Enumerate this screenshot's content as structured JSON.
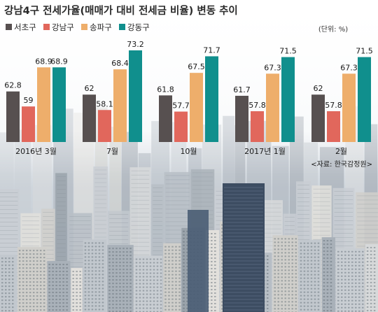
{
  "title": "강남4구 전세가율(매매가 대비 전세금 비율) 변동 추이",
  "unit": "(단위: %)",
  "source": "<자료: 한국감정원>",
  "colors": {
    "서초구": "#575050",
    "강남구": "#e1675c",
    "송파구": "#eeae6b",
    "강동구": "#108f8d"
  },
  "chart_data": {
    "type": "bar",
    "title": "강남4구 전세가율(매매가 대비 전세금 비율) 변동 추이",
    "categories": [
      "2016년 3월",
      "7월",
      "10월",
      "2017년 1월",
      "2월"
    ],
    "series": [
      {
        "name": "서초구",
        "values": [
          62.8,
          62,
          61.8,
          61.7,
          62
        ]
      },
      {
        "name": "강남구",
        "values": [
          59,
          58.1,
          57.7,
          57.8,
          57.8
        ]
      },
      {
        "name": "송파구",
        "values": [
          68.9,
          68.4,
          67.5,
          67.3,
          67.3
        ]
      },
      {
        "name": "강동구",
        "values": [
          68.9,
          73.2,
          71.7,
          71.5,
          71.5
        ]
      }
    ],
    "value_labels": [
      [
        "62.8",
        "59",
        "68.9",
        "68.9"
      ],
      [
        "62",
        "58.1",
        "68.4",
        "73.2"
      ],
      [
        "61.8",
        "57.7",
        "67.5",
        "71.7"
      ],
      [
        "61.7",
        "57.8",
        "67.3",
        "71.5"
      ],
      [
        "62",
        "57.8",
        "67.3",
        "71.5"
      ]
    ],
    "legend_position": "top-left",
    "grid": false
  }
}
